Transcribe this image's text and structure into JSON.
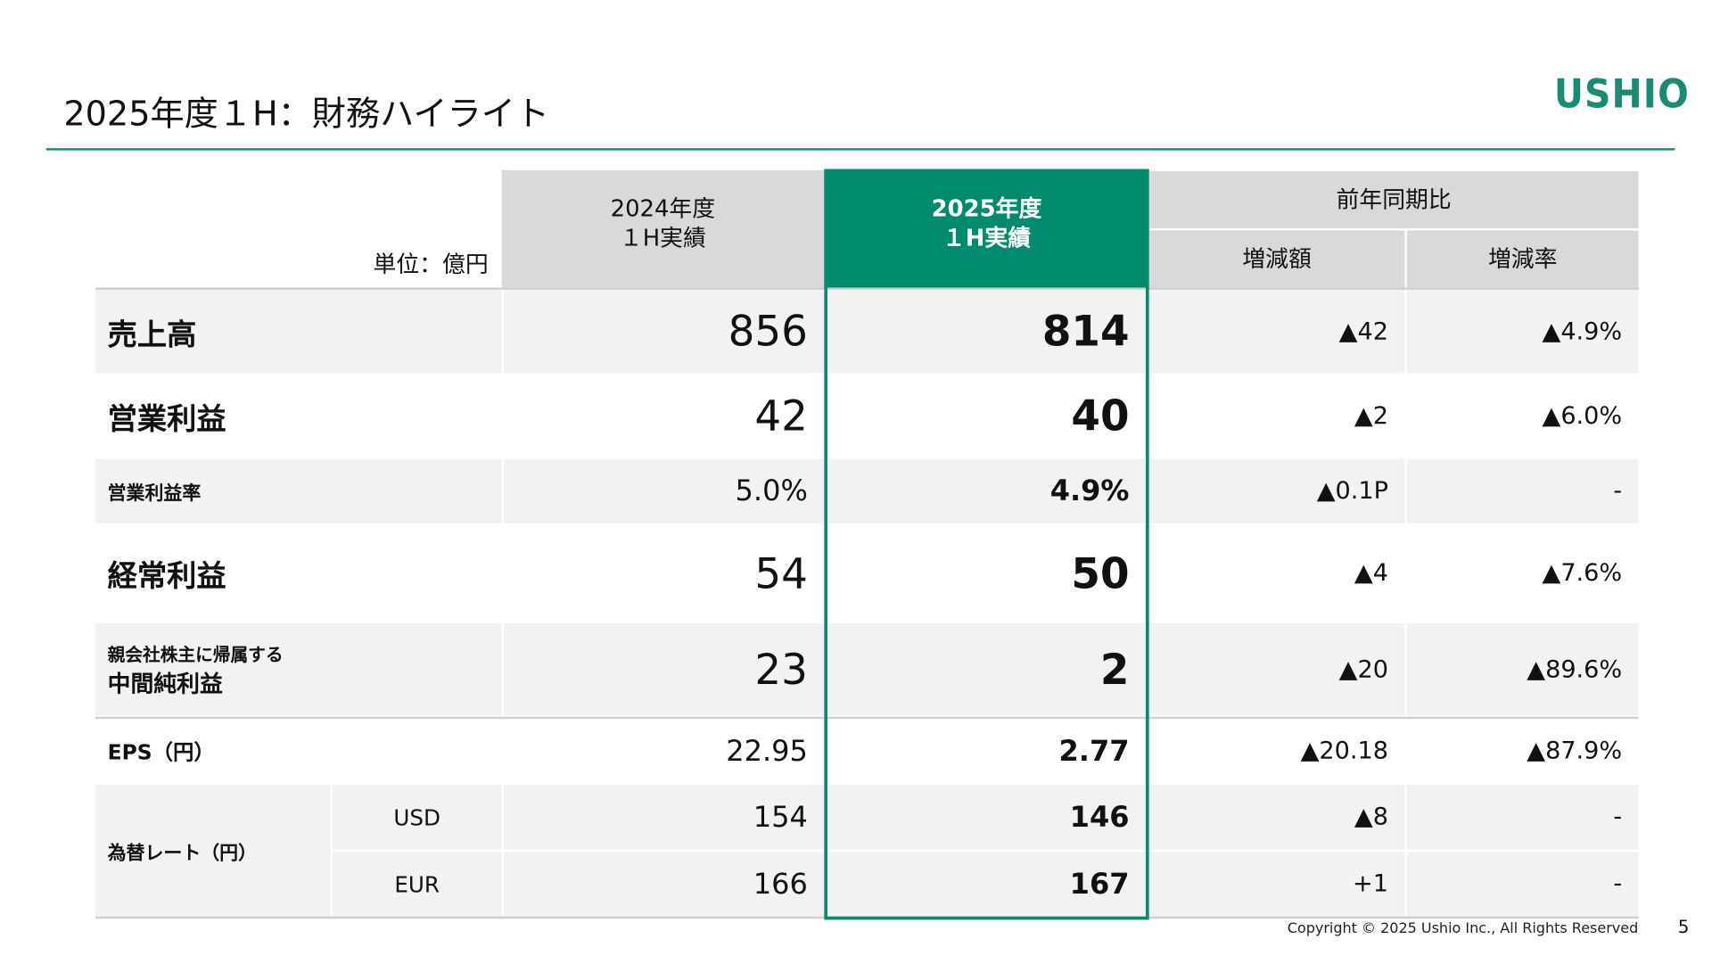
{
  "title": "2025年度１H：財務ハイライト",
  "logo": "USHIO",
  "colors": {
    "brand": "#1a8a72",
    "highlight": "#008a6e",
    "header_grey": "#d9d9d9",
    "row_grey": "#f2f2f2"
  },
  "table": {
    "unit": "単位：億円",
    "headers": {
      "prev": "2024年度\n１H実績",
      "curr": "2025年度\n１H実績",
      "yoy": "前年同期比",
      "diff": "増減額",
      "rate": "増減率"
    },
    "rows": [
      {
        "label": "売上高",
        "prev": "856",
        "curr": "814",
        "diff": "▲42",
        "rate": "▲4.9%"
      },
      {
        "label": "営業利益",
        "prev": "42",
        "curr": "40",
        "diff": "▲2",
        "rate": "▲6.0%"
      },
      {
        "label": "営業利益率",
        "prev": "5.0%",
        "curr": "4.9%",
        "diff": "▲0.1P",
        "rate": "-"
      },
      {
        "label": "経常利益",
        "prev": "54",
        "curr": "50",
        "diff": "▲4",
        "rate": "▲7.6%"
      },
      {
        "label_small": "親会社株主に帰属する",
        "label": "中間純利益",
        "prev": "23",
        "curr": "2",
        "diff": "▲20",
        "rate": "▲89.6%"
      },
      {
        "label": "EPS（円）",
        "prev": "22.95",
        "curr": "2.77",
        "diff": "▲20.18",
        "rate": "▲87.9%"
      }
    ],
    "fx": {
      "label": "為替レート（円）",
      "rows": [
        {
          "currency": "USD",
          "prev": "154",
          "curr": "146",
          "diff": "▲8",
          "rate": "-"
        },
        {
          "currency": "EUR",
          "prev": "166",
          "curr": "167",
          "diff": "+1",
          "rate": "-"
        }
      ]
    }
  },
  "footer": {
    "copyright": "Copyright © 2025 Ushio Inc., All Rights Reserved",
    "page": "5"
  }
}
